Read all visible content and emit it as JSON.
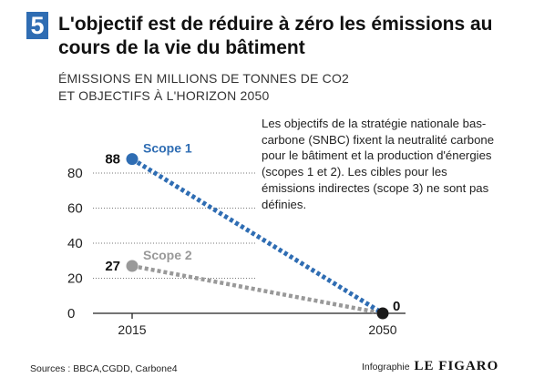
{
  "header": {
    "number": "5",
    "title": "L'objectif est de réduire à zéro les émissions au cours de la vie du bâtiment",
    "subtitle_line1": "ÉMISSIONS EN MILLIONS DE TONNES DE CO2",
    "subtitle_line2": "ET OBJECTIFS À L'HORIZON 2050"
  },
  "note": "Les objectifs de la stratégie nationale bas-carbone (SNBC) fixent la neutralité carbone pour le bâtiment et la production d'énergies (scopes 1 et 2). Les cibles pour les émissions indirectes (scope 3) ne sont pas définies.",
  "footer": {
    "sources": "Sources : BBCA,CGDD, Carbone4",
    "credit_label": "Infographie",
    "credit_brand": "LE FIGARO"
  },
  "colors": {
    "accent": "#2f6db3",
    "scope1": "#2f6db3",
    "scope2": "#999999",
    "end_point": "#1a1a1a"
  },
  "chart_data": {
    "type": "line",
    "x": [
      2015,
      2050
    ],
    "x_tick_labels": [
      "2015",
      "2050"
    ],
    "y_ticks": [
      0,
      20,
      40,
      60,
      80
    ],
    "ylim": [
      0,
      88
    ],
    "grid": "dotted horizontal",
    "series": [
      {
        "name": "Scope 1",
        "values": [
          88,
          0
        ],
        "labels": [
          "88",
          "0"
        ],
        "color": "#2f6db3"
      },
      {
        "name": "Scope 2",
        "values": [
          27,
          0
        ],
        "labels": [
          "27",
          ""
        ],
        "color": "#999999"
      }
    ]
  }
}
